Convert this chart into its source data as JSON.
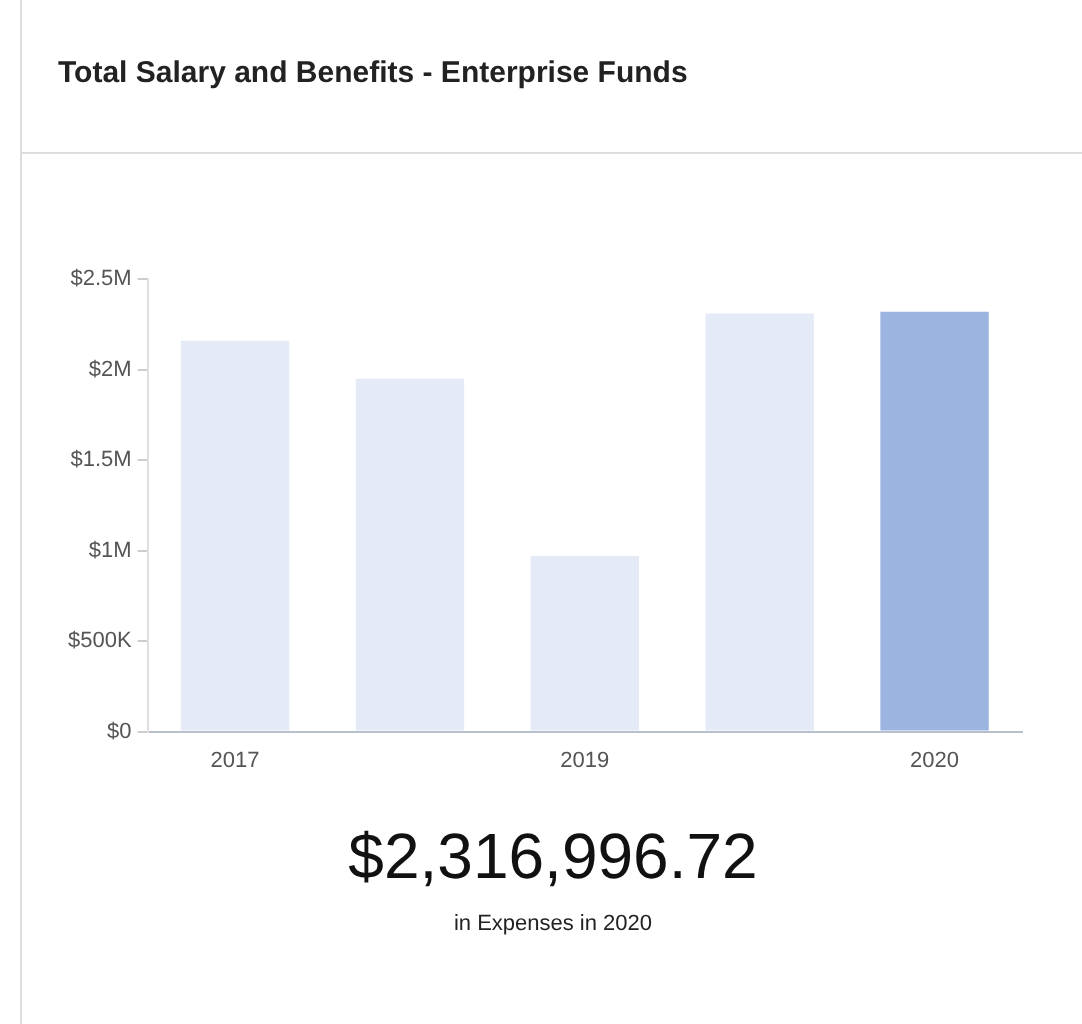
{
  "chart_data": {
    "type": "bar",
    "title": "Total Salary and Benefits - Enterprise Funds",
    "categories": [
      "2017",
      null,
      "2019",
      null,
      "2020"
    ],
    "values": [
      2160000,
      1950000,
      970000,
      2310000,
      2320000
    ],
    "colors": [
      "#e4ebf6",
      "#e4ebf6",
      "#e4ebf6",
      "#e4ebf6",
      "#9bb5e0"
    ],
    "ylim": [
      0,
      2500000
    ],
    "yticks": [
      {
        "value": 0,
        "label": "$0"
      },
      {
        "value": 500000,
        "label": "$500K"
      },
      {
        "value": 1000000,
        "label": "$1M"
      },
      {
        "value": 1500000,
        "label": "$1.5M"
      },
      {
        "value": 2000000,
        "label": "$2M"
      },
      {
        "value": 2500000,
        "label": "$2.5M"
      }
    ],
    "grid": false,
    "annotations": [
      "$2,316,996.72",
      "in Expenses in 2020"
    ]
  }
}
